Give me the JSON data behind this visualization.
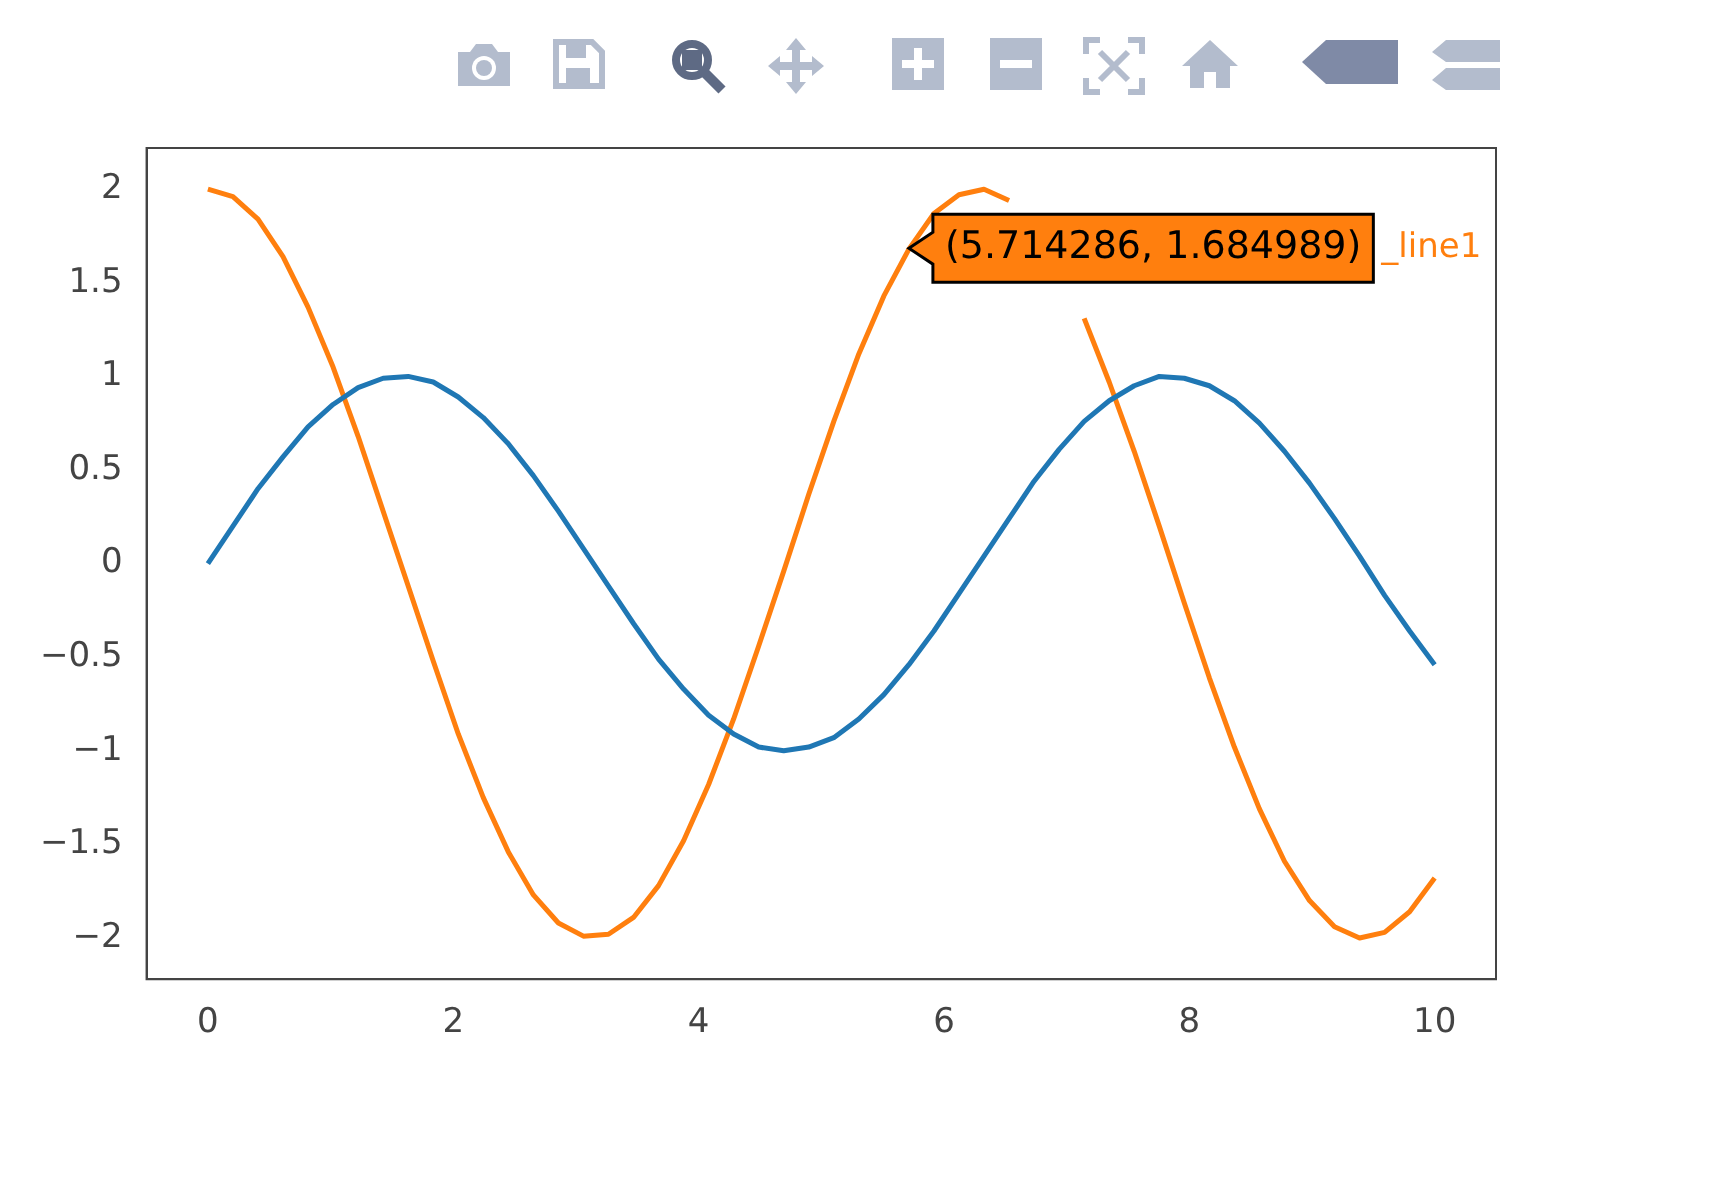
{
  "chart_data": {
    "type": "line",
    "x": [
      0,
      0.2041,
      0.4082,
      0.6122,
      0.8163,
      1.0204,
      1.2245,
      1.4286,
      1.6327,
      1.8367,
      2.0408,
      2.2449,
      2.449,
      2.6531,
      2.8571,
      3.0612,
      3.2653,
      3.4694,
      3.6735,
      3.8776,
      4.0816,
      4.2857,
      4.4898,
      4.6939,
      4.898,
      5.102,
      5.3061,
      5.5102,
      5.7143,
      5.9184,
      6.1224,
      6.3265,
      6.5306,
      6.7347,
      6.9388,
      7.1429,
      7.3469,
      7.551,
      7.7551,
      7.9592,
      8.1633,
      8.3673,
      8.5714,
      8.7755,
      8.9796,
      9.1837,
      9.3878,
      9.5918,
      9.7959,
      10
    ],
    "series": [
      {
        "color": "#1f77b4",
        "values": [
          0,
          0.2,
          0.4,
          0.57,
          0.73,
          0.85,
          0.94,
          0.99,
          1,
          0.97,
          0.89,
          0.78,
          0.64,
          0.47,
          0.28,
          0.08,
          -0.12,
          -0.32,
          -0.51,
          -0.67,
          -0.81,
          -0.91,
          -0.98,
          -1,
          -0.98,
          -0.93,
          -0.83,
          -0.7,
          -0.54,
          -0.36,
          -0.16,
          0.04,
          0.24,
          0.44,
          0.61,
          0.76,
          0.87,
          0.95,
          1,
          0.99,
          0.95,
          0.87,
          0.75,
          0.6,
          0.43,
          0.24,
          0.04,
          -0.17,
          -0.36,
          -0.54
        ]
      },
      {
        "name": "_line1",
        "color": "#ff7f0e",
        "values": [
          2,
          1.96,
          1.84,
          1.64,
          1.37,
          1.05,
          0.68,
          0.28,
          -0.12,
          -0.52,
          -0.91,
          -1.25,
          -1.54,
          -1.77,
          -1.92,
          -1.99,
          -1.98,
          -1.89,
          -1.72,
          -1.48,
          -1.18,
          -0.83,
          -0.44,
          -0.04,
          0.37,
          0.76,
          1.12,
          1.43,
          1.68,
          1.87,
          1.97,
          2,
          1.94,
          null,
          null,
          1.31,
          0.97,
          0.6,
          0.2,
          -0.21,
          -0.61,
          -0.98,
          -1.31,
          -1.59,
          -1.8,
          -1.94,
          -2,
          -1.97,
          -1.86,
          -1.68
        ]
      }
    ],
    "xlim": [
      -0.5,
      10.5
    ],
    "xticks": [
      0,
      2,
      4,
      6,
      8,
      10
    ],
    "ylim": [
      -2.22,
      2.22
    ],
    "yticks": [
      {
        "value": -2,
        "label": "−2"
      },
      {
        "value": -1.5,
        "label": "−1.5"
      },
      {
        "value": -1,
        "label": "−1"
      },
      {
        "value": -0.5,
        "label": "−0.5"
      },
      0,
      0.5,
      1,
      1.5,
      2
    ],
    "grid": false,
    "legend": false,
    "marker": "none",
    "line_style": "solid",
    "annotations": [
      {
        "text": "(5.714286, 1.684989)",
        "x": 5.714286,
        "y": 1.684989
      }
    ]
  }
}
